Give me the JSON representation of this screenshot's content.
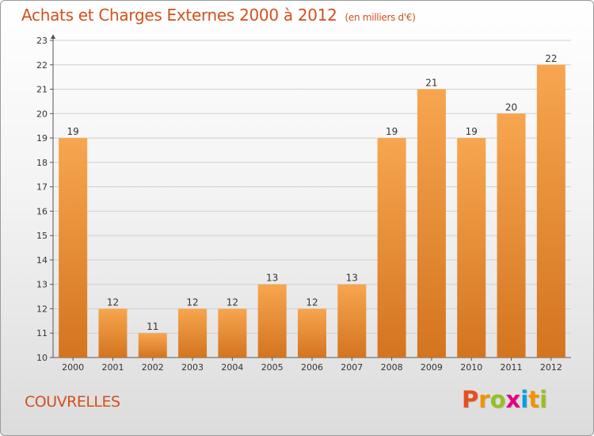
{
  "header": {
    "title": "Achats et Charges Externes 2000 à 2012",
    "unit": "(en milliers d'€)"
  },
  "commune": "COUVRELLES",
  "logo": {
    "text": "Proxiti",
    "letters": [
      "P",
      "r",
      "o",
      "x",
      "i",
      "t",
      "i"
    ],
    "colors": [
      "#e84e1b",
      "#f39200",
      "#95c11f",
      "#e6007e",
      "#009fe3",
      "#f39200",
      "#95c11f"
    ]
  },
  "colors": {
    "bar_top": "#f7a64f",
    "bar_bottom": "#d4741f",
    "accent": "#d3501f"
  },
  "chart_data": {
    "type": "bar",
    "categories": [
      "2000",
      "2001",
      "2002",
      "2003",
      "2004",
      "2005",
      "2006",
      "2007",
      "2008",
      "2009",
      "2010",
      "2011",
      "2012"
    ],
    "values": [
      19,
      12,
      11,
      12,
      12,
      13,
      12,
      13,
      19,
      21,
      19,
      20,
      22
    ],
    "ylim": [
      10,
      23
    ],
    "yticks": [
      10,
      11,
      12,
      13,
      14,
      15,
      16,
      17,
      18,
      19,
      20,
      21,
      22,
      23
    ],
    "grid": true,
    "data_labels": true
  }
}
